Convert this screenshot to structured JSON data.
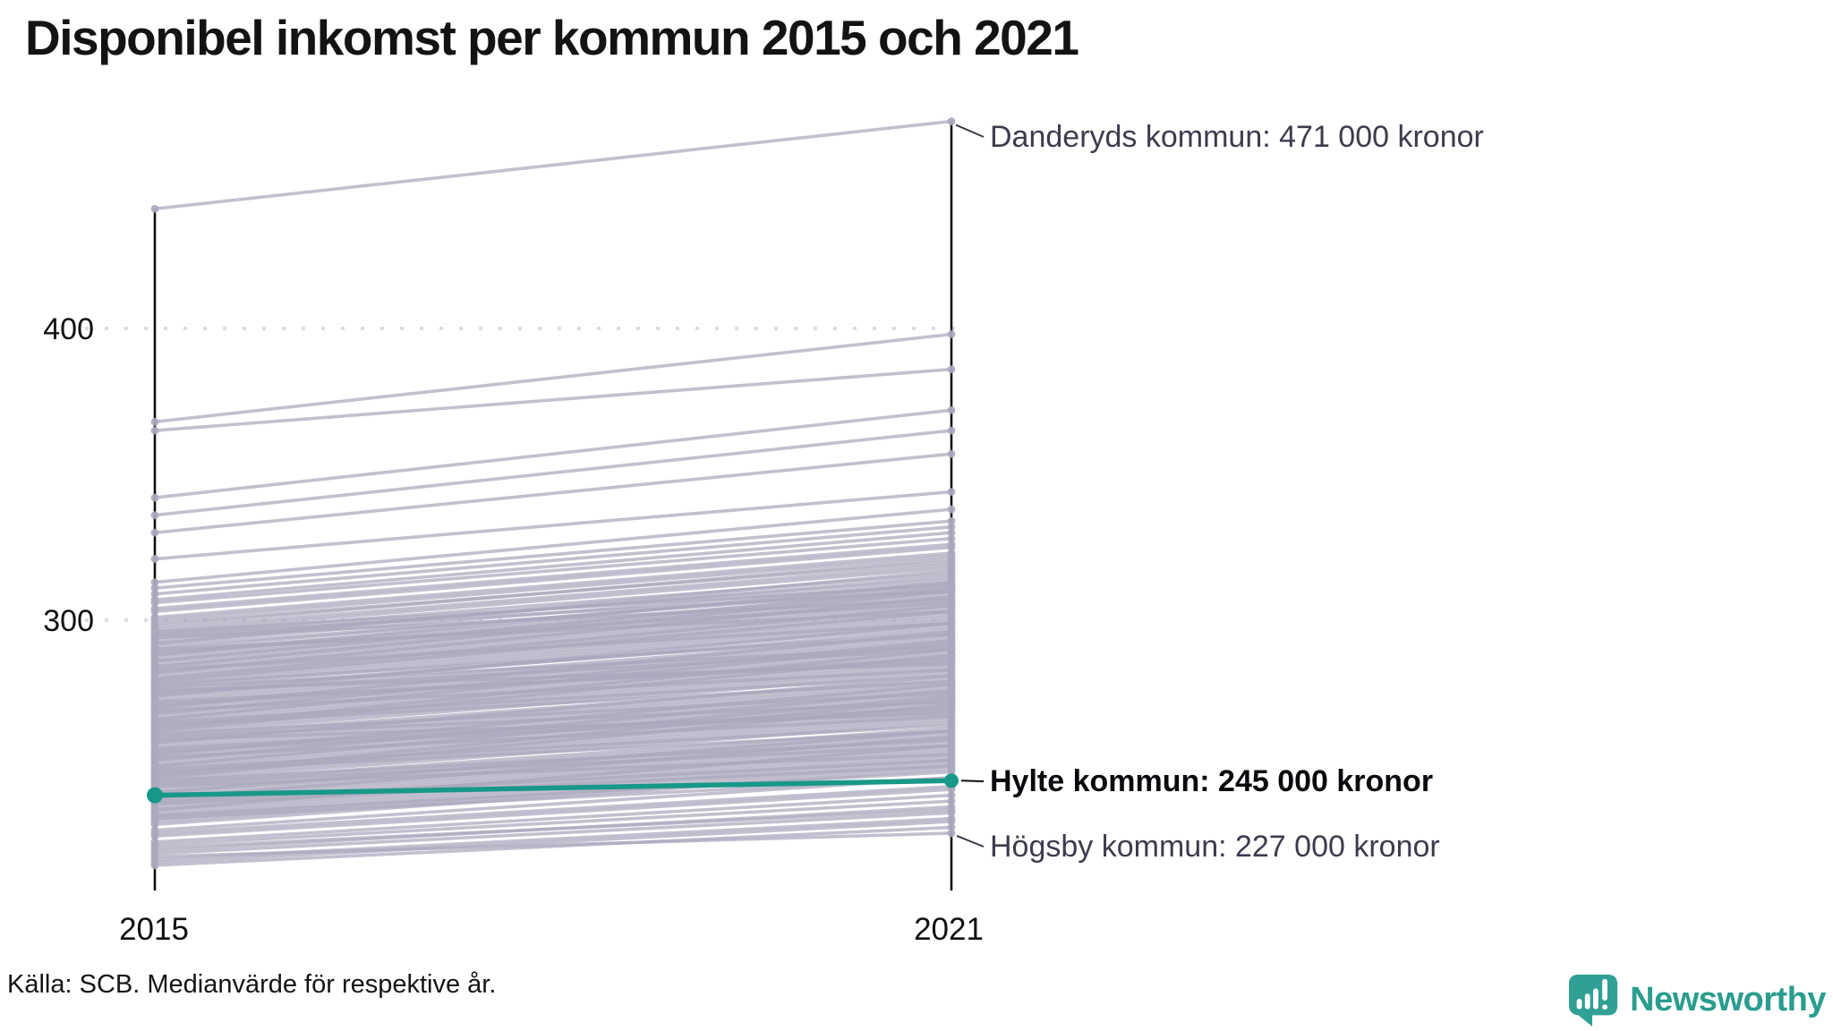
{
  "title": "Disponibel inkomst per kommun 2015 och 2021",
  "footer": {
    "source_note": "Källa: SCB. Medianvärde för respektive år."
  },
  "branding": {
    "name": "Newsworthy",
    "logo_icon": "speech-bubble-bar-chart-icon",
    "brand_color": "#2A9D8F"
  },
  "colors": {
    "highlight": "#179889",
    "line_gray": "#ABA8BC",
    "axis": "#101010",
    "grid": "#DCDCE4",
    "annotation_text": "#3C3C4E",
    "highlight_text": "#0A0A0E"
  },
  "chart_data": {
    "type": "line",
    "subtype": "slope-graph",
    "unit": "tusen kronor (median)",
    "x_categories": [
      "2015",
      "2021"
    ],
    "y_ticks": [
      {
        "value": 400,
        "label": "400"
      },
      {
        "value": 300,
        "label": "300"
      }
    ],
    "grid": "dotted-horizontal",
    "highlighted_series": {
      "name": "Hylte kommun",
      "values": {
        "2015": 240,
        "2021": 245
      },
      "label": "Hylte kommun: 245 000 kronor",
      "color": "#179889"
    },
    "annotated_series": [
      {
        "name": "Danderyds kommun",
        "values": {
          "2015": 441,
          "2021": 471
        },
        "label": "Danderyds kommun: 471 000 kronor"
      },
      {
        "name": "Högsby kommun",
        "values": {
          "2015": 219,
          "2021": 227
        },
        "label": "Högsby kommun: 227 000 kronor"
      }
    ],
    "background_lines": [
      [
        368,
        398
      ],
      [
        365,
        386
      ],
      [
        342,
        372
      ],
      [
        336,
        365
      ],
      [
        330,
        357
      ],
      [
        321,
        344
      ],
      [
        313,
        338
      ],
      [
        311,
        334
      ],
      [
        309,
        332
      ],
      [
        307,
        330
      ],
      [
        306,
        328
      ],
      [
        304,
        326
      ],
      [
        303,
        325
      ],
      [
        301,
        323
      ],
      [
        300,
        322
      ],
      [
        299,
        320
      ],
      [
        298,
        321
      ],
      [
        297,
        319
      ],
      [
        296,
        318
      ],
      [
        295,
        316
      ],
      [
        294,
        314
      ],
      [
        293,
        315
      ],
      [
        292,
        313
      ],
      [
        291,
        311
      ],
      [
        290,
        312
      ],
      [
        289,
        310
      ],
      [
        288,
        309
      ],
      [
        287,
        308
      ],
      [
        286,
        307
      ],
      [
        285,
        306
      ],
      [
        284,
        305
      ],
      [
        283,
        304
      ],
      [
        282,
        303
      ],
      [
        281,
        302
      ],
      [
        280,
        301
      ],
      [
        279,
        300
      ],
      [
        278,
        299
      ],
      [
        295,
        310
      ],
      [
        292,
        317
      ],
      [
        289,
        306
      ],
      [
        286,
        311
      ],
      [
        283,
        299
      ],
      [
        280,
        305
      ],
      [
        278,
        295
      ],
      [
        294,
        307
      ],
      [
        288,
        313
      ],
      [
        282,
        308
      ],
      [
        296,
        312
      ],
      [
        290,
        303
      ],
      [
        284,
        310
      ],
      [
        279,
        303
      ],
      [
        277,
        298
      ],
      [
        276,
        296
      ],
      [
        275,
        297
      ],
      [
        274,
        295
      ],
      [
        273,
        294
      ],
      [
        272,
        293
      ],
      [
        271,
        292
      ],
      [
        270,
        291
      ],
      [
        269,
        290
      ],
      [
        268,
        289
      ],
      [
        267,
        288
      ],
      [
        266,
        287
      ],
      [
        265,
        286
      ],
      [
        264,
        285
      ],
      [
        263,
        284
      ],
      [
        262,
        283
      ],
      [
        277,
        291
      ],
      [
        274,
        299
      ],
      [
        271,
        287
      ],
      [
        268,
        293
      ],
      [
        265,
        281
      ],
      [
        262,
        288
      ],
      [
        276,
        285
      ],
      [
        270,
        296
      ],
      [
        264,
        279
      ],
      [
        275,
        290
      ],
      [
        269,
        283
      ],
      [
        263,
        290
      ],
      [
        272,
        286
      ],
      [
        266,
        292
      ],
      [
        261,
        282
      ],
      [
        260,
        280
      ],
      [
        259,
        279
      ],
      [
        258,
        278
      ],
      [
        257,
        277
      ],
      [
        256,
        276
      ],
      [
        255,
        275
      ],
      [
        254,
        274
      ],
      [
        253,
        273
      ],
      [
        252,
        272
      ],
      [
        251,
        271
      ],
      [
        250,
        270
      ],
      [
        249,
        269
      ],
      [
        248,
        268
      ],
      [
        247,
        267
      ],
      [
        246,
        266
      ],
      [
        261,
        275
      ],
      [
        258,
        281
      ],
      [
        255,
        269
      ],
      [
        252,
        276
      ],
      [
        249,
        264
      ],
      [
        246,
        271
      ],
      [
        260,
        272
      ],
      [
        254,
        278
      ],
      [
        248,
        262
      ],
      [
        259,
        268
      ],
      [
        253,
        267
      ],
      [
        247,
        273
      ],
      [
        256,
        270
      ],
      [
        250,
        274
      ],
      [
        245,
        265
      ],
      [
        244,
        263
      ],
      [
        243,
        262
      ],
      [
        242,
        261
      ],
      [
        241,
        260
      ],
      [
        240,
        259
      ],
      [
        239,
        258
      ],
      [
        238,
        257
      ],
      [
        237,
        256
      ],
      [
        236,
        255
      ],
      [
        235,
        254
      ],
      [
        234,
        253
      ],
      [
        233,
        252
      ],
      [
        232,
        251
      ],
      [
        231,
        250
      ],
      [
        230,
        249
      ],
      [
        244,
        257
      ],
      [
        241,
        262
      ],
      [
        238,
        252
      ],
      [
        235,
        257
      ],
      [
        232,
        246
      ],
      [
        243,
        254
      ],
      [
        239,
        260
      ],
      [
        233,
        248
      ],
      [
        245,
        259
      ],
      [
        237,
        250
      ],
      [
        228,
        246
      ],
      [
        227,
        243
      ],
      [
        226,
        242
      ],
      [
        224,
        240
      ],
      [
        223,
        238
      ],
      [
        221,
        236
      ],
      [
        220,
        234
      ],
      [
        218,
        232
      ],
      [
        217,
        231
      ],
      [
        216,
        229
      ],
      [
        222,
        235
      ]
    ]
  }
}
